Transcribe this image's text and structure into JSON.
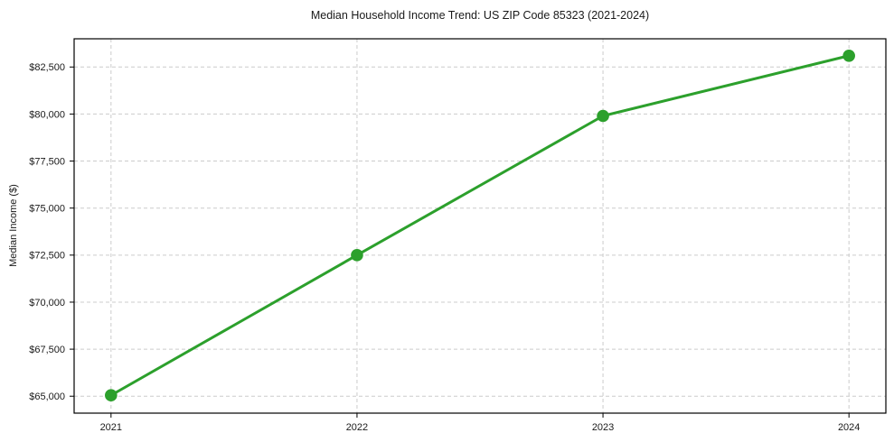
{
  "chart_data": {
    "type": "line",
    "title": "Median Household Income Trend: US ZIP Code 85323 (2021-2024)",
    "xlabel": "",
    "ylabel": "Median Income ($)",
    "x": [
      2021,
      2022,
      2023,
      2024
    ],
    "series": [
      {
        "name": "Median Household Income",
        "values": [
          65050,
          72500,
          79900,
          83100
        ]
      }
    ],
    "x_tick_labels": [
      "2021",
      "2022",
      "2023",
      "2024"
    ],
    "y_ticks": [
      65000,
      67500,
      70000,
      72500,
      75000,
      77500,
      80000,
      82500
    ],
    "y_tick_labels": [
      "$65,000",
      "$67,500",
      "$70,000",
      "$72,500",
      "$75,000",
      "$77,500",
      "$80,000",
      "$82,500"
    ],
    "xlim": [
      2020.85,
      2024.15
    ],
    "ylim": [
      64100,
      84000
    ],
    "grid": true,
    "grid_style": "dashed",
    "legend_position": "none",
    "line_color": "#2ca02c",
    "marker": "circle",
    "background_color": "#ffffff",
    "axis_color": "#000000",
    "grid_color": "#cccccc",
    "text_color": "#1a1a1a"
  }
}
